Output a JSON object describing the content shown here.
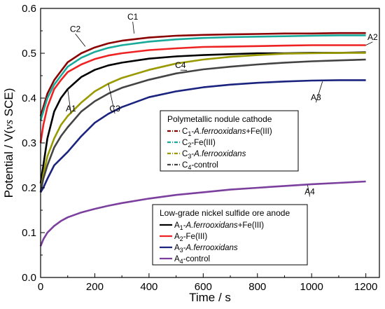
{
  "chart_data": {
    "type": "line",
    "xlabel": "Time / s",
    "ylabel_parts": [
      "Potential / V(",
      "vs",
      " SCE)"
    ],
    "xlim": [
      0,
      1250
    ],
    "ylim": [
      0.0,
      0.6
    ],
    "x_ticks": [
      "0",
      "200",
      "400",
      "600",
      "800",
      "1000",
      "1200"
    ],
    "y_ticks": [
      "0.0",
      "0.1",
      "0.2",
      "0.3",
      "0.4",
      "0.5",
      "0.6"
    ],
    "x": [
      0,
      10,
      25,
      50,
      75,
      100,
      150,
      200,
      250,
      300,
      400,
      500,
      600,
      700,
      800,
      900,
      1000,
      1100,
      1200
    ],
    "series": [
      {
        "name": "C1",
        "color": "#8b0000",
        "values": [
          0.36,
          0.38,
          0.41,
          0.44,
          0.46,
          0.48,
          0.5,
          0.513,
          0.522,
          0.528,
          0.535,
          0.539,
          0.541,
          0.542,
          0.543,
          0.544,
          0.544,
          0.545,
          0.545
        ]
      },
      {
        "name": "C2",
        "color": "#1aaa99",
        "values": [
          0.35,
          0.37,
          0.4,
          0.43,
          0.45,
          0.47,
          0.49,
          0.503,
          0.512,
          0.518,
          0.526,
          0.531,
          0.534,
          0.536,
          0.537,
          0.538,
          0.539,
          0.54,
          0.54
        ]
      },
      {
        "name": "A2",
        "color": "#ee2222",
        "values": [
          0.3,
          0.34,
          0.38,
          0.42,
          0.44,
          0.458,
          0.475,
          0.487,
          0.495,
          0.5,
          0.507,
          0.511,
          0.514,
          0.515,
          0.516,
          0.517,
          0.518,
          0.518,
          0.518
        ]
      },
      {
        "name": "A1",
        "color": "#000000",
        "values": [
          0.21,
          0.25,
          0.31,
          0.37,
          0.4,
          0.42,
          0.447,
          0.463,
          0.473,
          0.479,
          0.488,
          0.493,
          0.496,
          0.498,
          0.5,
          0.5,
          0.501,
          0.501,
          0.502
        ]
      },
      {
        "name": "C3",
        "color": "#999900",
        "values": [
          0.19,
          0.23,
          0.27,
          0.31,
          0.34,
          0.36,
          0.39,
          0.415,
          0.432,
          0.445,
          0.463,
          0.477,
          0.486,
          0.492,
          0.496,
          0.499,
          0.5,
          0.501,
          0.501
        ]
      },
      {
        "name": "C4",
        "color": "#444444",
        "values": [
          0.19,
          0.22,
          0.25,
          0.29,
          0.315,
          0.335,
          0.37,
          0.393,
          0.41,
          0.423,
          0.441,
          0.455,
          0.464,
          0.47,
          0.475,
          0.479,
          0.482,
          0.484,
          0.486
        ]
      },
      {
        "name": "A3",
        "color": "#1a237e",
        "values": [
          0.19,
          0.2,
          0.22,
          0.25,
          0.265,
          0.28,
          0.315,
          0.345,
          0.365,
          0.38,
          0.402,
          0.415,
          0.424,
          0.43,
          0.434,
          0.437,
          0.439,
          0.44,
          0.44
        ]
      },
      {
        "name": "A4",
        "color": "#7b3f9e",
        "values": [
          0.07,
          0.085,
          0.1,
          0.115,
          0.126,
          0.134,
          0.145,
          0.153,
          0.16,
          0.166,
          0.176,
          0.184,
          0.19,
          0.196,
          0.2,
          0.204,
          0.208,
          0.211,
          0.214
        ]
      }
    ],
    "curve_labels": [
      {
        "text": "C1",
        "x": 340,
        "y": 0.575,
        "lead_x": 345,
        "lead_y": 0.544
      },
      {
        "text": "C2",
        "x": 128,
        "y": 0.548,
        "lead_x": 165,
        "lead_y": 0.515
      },
      {
        "text": "A1",
        "x": 112,
        "y": 0.37,
        "lead_x": 100,
        "lead_y": 0.42
      },
      {
        "text": "C3",
        "x": 274,
        "y": 0.37,
        "lead_x": 250,
        "lead_y": 0.432
      },
      {
        "text": "C4",
        "x": 516,
        "y": 0.467,
        "lead_x": 540,
        "lead_y": 0.462
      },
      {
        "text": "A2",
        "x": 1225,
        "y": 0.53,
        "lead_x": 1200,
        "lead_y": 0.518
      },
      {
        "text": "A3",
        "x": 1016,
        "y": 0.395,
        "lead_x": 1040,
        "lead_y": 0.437
      },
      {
        "text": "A4",
        "x": 993,
        "y": 0.185,
        "lead_x": 985,
        "lead_y": 0.206
      }
    ],
    "legends": [
      {
        "title": "Polymetallic nodule cathode",
        "entries": [
          {
            "series": "C1",
            "prefix": "C",
            "sub": "1",
            "text": "-",
            "italic": "A.ferrooxidans",
            "suffix": "+Fe(III)"
          },
          {
            "series": "C2",
            "prefix": "C",
            "sub": "2",
            "text": "-Fe(III)",
            "italic": "",
            "suffix": ""
          },
          {
            "series": "C3",
            "prefix": "C",
            "sub": "3",
            "text": "-",
            "italic": "A.ferrooxidans",
            "suffix": ""
          },
          {
            "series": "C4",
            "prefix": "C",
            "sub": "4",
            "text": "-control",
            "italic": "",
            "suffix": ""
          }
        ]
      },
      {
        "title": "Low-grade nickel sulfide ore anode",
        "entries": [
          {
            "series": "A1",
            "prefix": "A",
            "sub": "1",
            "text": "-",
            "italic": "A.ferrooxidans",
            "suffix": "+Fe(III)"
          },
          {
            "series": "A2",
            "prefix": "A",
            "sub": "2",
            "text": "-Fe(III)",
            "italic": "",
            "suffix": ""
          },
          {
            "series": "A3",
            "prefix": "A",
            "sub": "3",
            "text": "-",
            "italic": "A.ferrooxidans",
            "suffix": ""
          },
          {
            "series": "A4",
            "prefix": "A",
            "sub": "4",
            "text": "-control",
            "italic": "",
            "suffix": ""
          }
        ]
      }
    ]
  }
}
